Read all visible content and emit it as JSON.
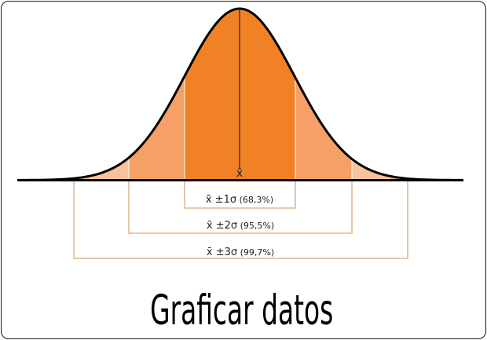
{
  "diagram": {
    "mean_symbol": "x̄",
    "ranges": [
      {
        "sym": "x̄",
        "pm": " ±1σ",
        "pct": "  (68,3%)"
      },
      {
        "sym": "x̄",
        "pm": " ±2σ",
        "pct": "  (95,5%)"
      },
      {
        "sym": "x̄",
        "pm": " ±3σ",
        "pct": "  (99,7%)"
      }
    ]
  },
  "title": "Graficar datos",
  "colors": {
    "band_1sigma": "#f08125",
    "band_2sigma": "#f4a066",
    "band_3sigma": "#f8c39c",
    "bracket": "#e0b98f",
    "curve": "#000000"
  }
}
